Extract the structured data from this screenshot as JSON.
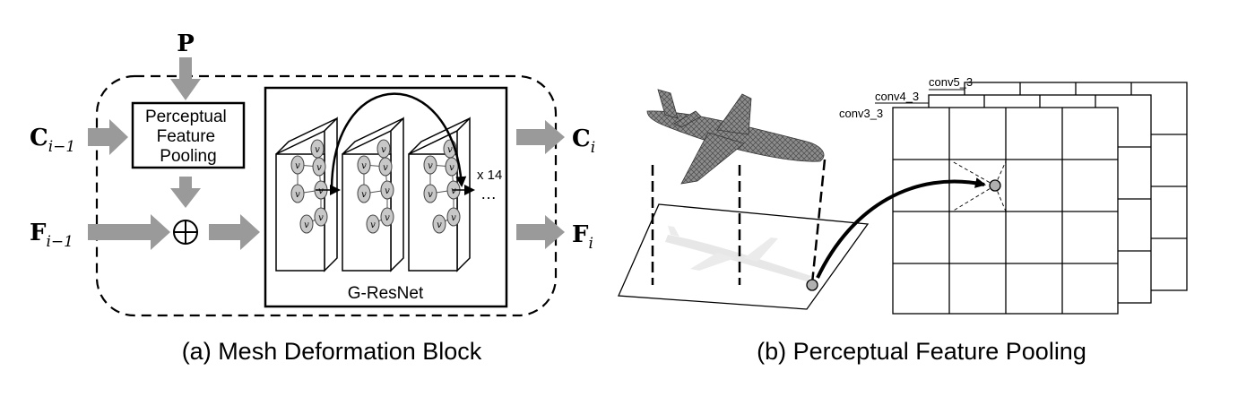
{
  "panel_a": {
    "caption": "(a) Mesh Deformation Block",
    "input_p": "P",
    "input_c": {
      "base": "C",
      "sub": "i−1"
    },
    "input_f": {
      "base": "F",
      "sub": "i−1"
    },
    "output_c": {
      "base": "C",
      "sub": "i"
    },
    "output_f": {
      "base": "F",
      "sub": "i"
    },
    "pooling_label": [
      "Perceptual",
      "Feature",
      "Pooling"
    ],
    "resnet_label": "G-ResNet",
    "repeat_label": "x 14",
    "ellipsis": "…",
    "vertex_label": "v"
  },
  "panel_b": {
    "caption": "(b) Perceptual Feature Pooling",
    "layers": [
      "conv5_3",
      "conv4_3",
      "conv3_3"
    ]
  },
  "colors": {
    "arrow_fill": "#9a9a9a",
    "node_fill": "#c8c8c8",
    "line": "#000000",
    "point_fill": "#b0b0b0"
  },
  "icons": {
    "plus_node": "circled-plus-icon",
    "airplane": "airplane-mesh-icon"
  }
}
